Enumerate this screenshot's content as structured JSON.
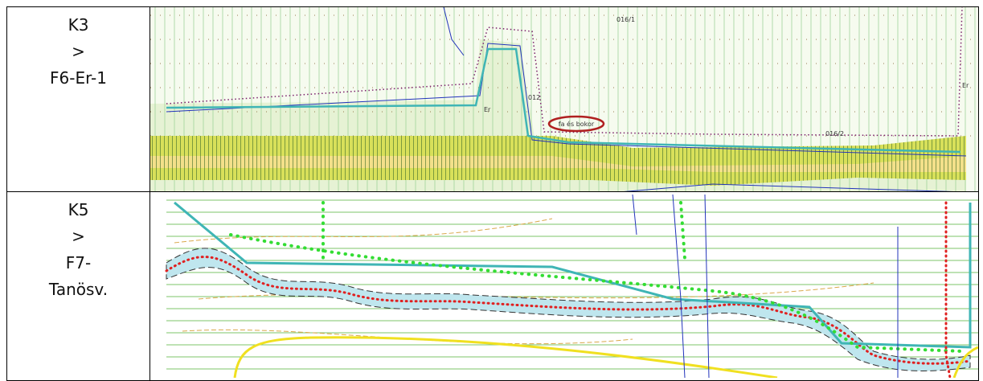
{
  "table": {
    "rows": [
      {
        "label": [
          "K3",
          ">",
          "F6-Er-1"
        ],
        "map_labels": [
          "fa és bokor",
          "Er",
          "Er",
          "012",
          "016/1",
          "016/2"
        ]
      },
      {
        "label": [
          "K5",
          ">",
          "F7-",
          "Tanösv."
        ]
      }
    ]
  }
}
